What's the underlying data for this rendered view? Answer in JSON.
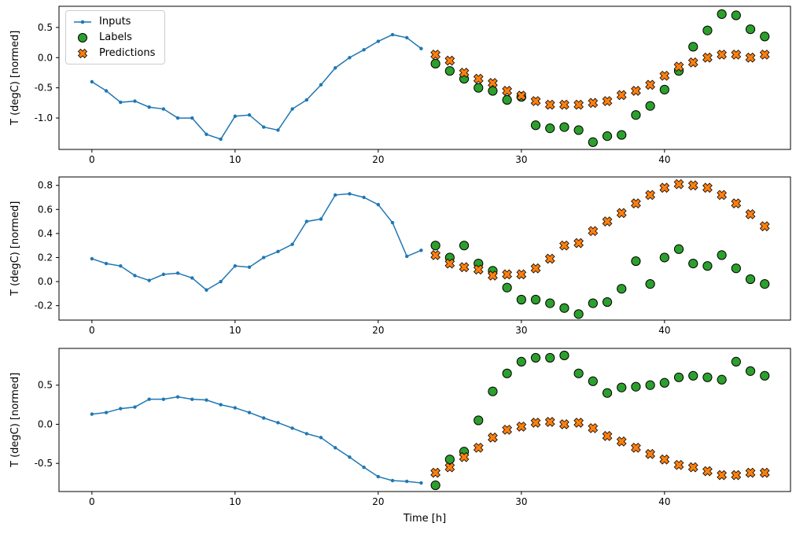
{
  "figure": {
    "background": "#ffffff"
  },
  "legend": {
    "location": "upper left",
    "items": [
      {
        "label": "Inputs",
        "marker": "line-dot",
        "color": "#1f77b4"
      },
      {
        "label": "Labels",
        "marker": "circle",
        "color": "#2ca02c",
        "edge": "#000000"
      },
      {
        "label": "Predictions",
        "marker": "x",
        "color": "#ff7f0e",
        "edge": "#000000"
      }
    ]
  },
  "chart_data": [
    {
      "type": "line",
      "title": "",
      "xlabel": "",
      "ylabel": "T (degC) [normed]",
      "xlim": [
        -2.3,
        48.8
      ],
      "ylim": [
        -1.52,
        0.85
      ],
      "xticks": [
        0,
        10,
        20,
        30,
        40
      ],
      "yticks": [
        0.5,
        0.0,
        -0.5,
        -1.0
      ],
      "grid": false,
      "series": [
        {
          "name": "Inputs",
          "type": "line",
          "color": "#1f77b4",
          "x": [
            0,
            1,
            2,
            3,
            4,
            5,
            6,
            7,
            8,
            9,
            10,
            11,
            12,
            13,
            14,
            15,
            16,
            17,
            18,
            19,
            20,
            21,
            22,
            23
          ],
          "y": [
            -0.4,
            -0.55,
            -0.74,
            -0.72,
            -0.82,
            -0.85,
            -1.0,
            -1.0,
            -1.27,
            -1.35,
            -0.97,
            -0.95,
            -1.15,
            -1.2,
            -0.85,
            -0.7,
            -0.45,
            -0.17,
            0.0,
            0.13,
            0.27,
            0.38,
            0.33,
            0.15
          ]
        },
        {
          "name": "Labels",
          "type": "circle",
          "color": "#2ca02c",
          "edge": "#000000",
          "x": [
            24,
            25,
            26,
            27,
            28,
            29,
            30,
            31,
            32,
            33,
            34,
            35,
            36,
            37,
            38,
            39,
            40,
            41,
            42,
            43,
            44,
            45,
            46,
            47
          ],
          "y": [
            -0.1,
            -0.22,
            -0.35,
            -0.5,
            -0.55,
            -0.7,
            -0.65,
            -1.12,
            -1.17,
            -1.15,
            -1.2,
            -1.4,
            -1.3,
            -1.28,
            -0.95,
            -0.8,
            -0.53,
            -0.22,
            0.18,
            0.45,
            0.72,
            0.7,
            0.47,
            0.35
          ]
        },
        {
          "name": "Predictions",
          "type": "x",
          "color": "#ff7f0e",
          "edge": "#000000",
          "x": [
            24,
            25,
            26,
            27,
            28,
            29,
            30,
            31,
            32,
            33,
            34,
            35,
            36,
            37,
            38,
            39,
            40,
            41,
            42,
            43,
            44,
            45,
            46,
            47
          ],
          "y": [
            0.05,
            -0.05,
            -0.25,
            -0.35,
            -0.42,
            -0.55,
            -0.63,
            -0.72,
            -0.78,
            -0.78,
            -0.78,
            -0.75,
            -0.72,
            -0.62,
            -0.55,
            -0.45,
            -0.3,
            -0.15,
            -0.08,
            0.0,
            0.05,
            0.05,
            0.0,
            0.05
          ]
        }
      ]
    },
    {
      "type": "line",
      "title": "",
      "xlabel": "",
      "ylabel": "T (degC) [normed]",
      "xlim": [
        -2.3,
        48.8
      ],
      "ylim": [
        -0.32,
        0.87
      ],
      "xticks": [
        0,
        10,
        20,
        30,
        40
      ],
      "yticks": [
        0.8,
        0.6,
        0.4,
        0.2,
        0.0,
        -0.2
      ],
      "grid": false,
      "series": [
        {
          "name": "Inputs",
          "type": "line",
          "color": "#1f77b4",
          "x": [
            0,
            1,
            2,
            3,
            4,
            5,
            6,
            7,
            8,
            9,
            10,
            11,
            12,
            13,
            14,
            15,
            16,
            17,
            18,
            19,
            20,
            21,
            22,
            23
          ],
          "y": [
            0.19,
            0.15,
            0.13,
            0.05,
            0.01,
            0.06,
            0.07,
            0.03,
            -0.07,
            0.0,
            0.13,
            0.12,
            0.2,
            0.25,
            0.31,
            0.5,
            0.52,
            0.72,
            0.73,
            0.7,
            0.64,
            0.49,
            0.21,
            0.26
          ]
        },
        {
          "name": "Labels",
          "type": "circle",
          "color": "#2ca02c",
          "edge": "#000000",
          "x": [
            24,
            25,
            26,
            27,
            28,
            29,
            30,
            31,
            32,
            33,
            34,
            35,
            36,
            37,
            38,
            39,
            40,
            41,
            42,
            43,
            44,
            45,
            46,
            47
          ],
          "y": [
            0.3,
            0.2,
            0.3,
            0.15,
            0.09,
            -0.05,
            -0.15,
            -0.15,
            -0.18,
            -0.22,
            -0.27,
            -0.18,
            -0.17,
            -0.06,
            0.17,
            -0.02,
            0.2,
            0.27,
            0.15,
            0.13,
            0.22,
            0.11,
            0.02,
            -0.02
          ]
        },
        {
          "name": "Predictions",
          "type": "x",
          "color": "#ff7f0e",
          "edge": "#000000",
          "x": [
            24,
            25,
            26,
            27,
            28,
            29,
            30,
            31,
            32,
            33,
            34,
            35,
            36,
            37,
            38,
            39,
            40,
            41,
            42,
            43,
            44,
            45,
            46,
            47
          ],
          "y": [
            0.22,
            0.15,
            0.12,
            0.1,
            0.05,
            0.06,
            0.06,
            0.11,
            0.19,
            0.3,
            0.32,
            0.42,
            0.5,
            0.57,
            0.65,
            0.72,
            0.78,
            0.81,
            0.8,
            0.78,
            0.72,
            0.65,
            0.56,
            0.46
          ]
        }
      ]
    },
    {
      "type": "line",
      "title": "",
      "xlabel": "Time [h]",
      "ylabel": "T (degC) [normed]",
      "xlim": [
        -2.3,
        48.8
      ],
      "ylim": [
        -0.86,
        0.97
      ],
      "xticks": [
        0,
        10,
        20,
        30,
        40
      ],
      "yticks": [
        0.5,
        0.0,
        -0.5
      ],
      "grid": false,
      "series": [
        {
          "name": "Inputs",
          "type": "line",
          "color": "#1f77b4",
          "x": [
            0,
            1,
            2,
            3,
            4,
            5,
            6,
            7,
            8,
            9,
            10,
            11,
            12,
            13,
            14,
            15,
            16,
            17,
            18,
            19,
            20,
            21,
            22,
            23
          ],
          "y": [
            0.13,
            0.15,
            0.2,
            0.22,
            0.32,
            0.32,
            0.35,
            0.32,
            0.31,
            0.25,
            0.21,
            0.15,
            0.08,
            0.02,
            -0.05,
            -0.12,
            -0.17,
            -0.3,
            -0.42,
            -0.55,
            -0.67,
            -0.72,
            -0.73,
            -0.75
          ]
        },
        {
          "name": "Labels",
          "type": "circle",
          "color": "#2ca02c",
          "edge": "#000000",
          "x": [
            24,
            25,
            26,
            27,
            28,
            29,
            30,
            31,
            32,
            33,
            34,
            35,
            36,
            37,
            38,
            39,
            40,
            41,
            42,
            43,
            44,
            45,
            46,
            47
          ],
          "y": [
            -0.78,
            -0.45,
            -0.35,
            0.05,
            0.42,
            0.65,
            0.8,
            0.85,
            0.85,
            0.88,
            0.65,
            0.55,
            0.4,
            0.47,
            0.48,
            0.5,
            0.53,
            0.6,
            0.62,
            0.6,
            0.57,
            0.8,
            0.68,
            0.62
          ]
        },
        {
          "name": "Predictions",
          "type": "x",
          "color": "#ff7f0e",
          "edge": "#000000",
          "x": [
            24,
            25,
            26,
            27,
            28,
            29,
            30,
            31,
            32,
            33,
            34,
            35,
            36,
            37,
            38,
            39,
            40,
            41,
            42,
            43,
            44,
            45,
            46,
            47
          ],
          "y": [
            -0.62,
            -0.55,
            -0.42,
            -0.3,
            -0.17,
            -0.07,
            -0.03,
            0.02,
            0.03,
            0.0,
            0.02,
            -0.05,
            -0.15,
            -0.22,
            -0.3,
            -0.38,
            -0.45,
            -0.52,
            -0.55,
            -0.6,
            -0.65,
            -0.65,
            -0.62,
            -0.62
          ]
        }
      ]
    }
  ]
}
